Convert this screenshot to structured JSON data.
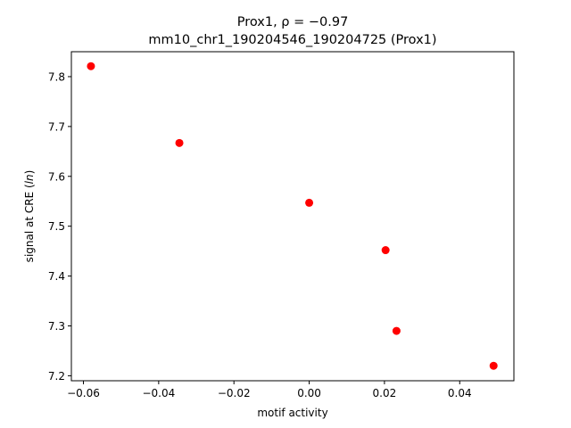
{
  "chart_data": {
    "type": "scatter",
    "title_line1": "Prox1, ρ = −0.97",
    "title_line2": "mm10_chr1_190204546_190204725 (Prox1)",
    "xlabel": "motif activity",
    "ylabel_main": "signal at CRE (",
    "ylabel_italic": "ln",
    "ylabel_end": ")",
    "xlim": [
      -0.0632,
      0.0544
    ],
    "ylim": [
      7.19,
      7.85
    ],
    "xticks": [
      -0.06,
      -0.04,
      -0.02,
      0.0,
      0.02,
      0.04
    ],
    "xtick_labels": [
      "−0.06",
      "−0.04",
      "−0.02",
      "0.00",
      "0.02",
      "0.04"
    ],
    "yticks": [
      7.2,
      7.3,
      7.4,
      7.5,
      7.6,
      7.7,
      7.8
    ],
    "ytick_labels": [
      "7.2",
      "7.3",
      "7.4",
      "7.5",
      "7.6",
      "7.7",
      "7.8"
    ],
    "grid": false,
    "marker_color": "#ff0000",
    "points": [
      {
        "x": -0.058,
        "y": 7.821
      },
      {
        "x": -0.0345,
        "y": 7.667
      },
      {
        "x": 0.0,
        "y": 7.547
      },
      {
        "x": 0.0203,
        "y": 7.452
      },
      {
        "x": 0.0232,
        "y": 7.29
      },
      {
        "x": 0.049,
        "y": 7.22
      }
    ]
  }
}
